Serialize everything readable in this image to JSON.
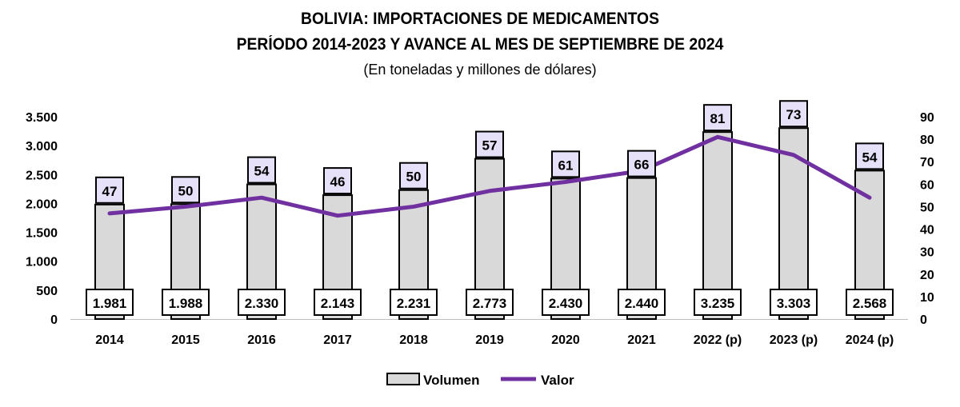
{
  "chart_data": {
    "type": "bar",
    "title": "BOLIVIA: IMPORTACIONES DE MEDICAMENTOS",
    "subtitle": "PERÍODO 2014-2023 Y AVANCE AL MES DE SEPTIEMBRE DE 2024",
    "units_note": "(En toneladas y millones de dólares)",
    "categories": [
      "2014",
      "2015",
      "2016",
      "2017",
      "2018",
      "2019",
      "2020",
      "2021",
      "2022 (p)",
      "2023 (p)",
      "2024 (p)"
    ],
    "series": [
      {
        "name": "Volumen",
        "type": "bar",
        "axis": "left",
        "values": [
          1981,
          1988,
          2330,
          2143,
          2231,
          2773,
          2430,
          2440,
          3235,
          3303,
          2568
        ],
        "labels": [
          "1.981",
          "1.988",
          "2.330",
          "2.143",
          "2.231",
          "2.773",
          "2.430",
          "2.440",
          "3.235",
          "3.303",
          "2.568"
        ],
        "color": "#d9d9d9"
      },
      {
        "name": "Valor",
        "type": "line",
        "axis": "right",
        "values": [
          47,
          50,
          54,
          46,
          50,
          57,
          61,
          66,
          81,
          73,
          54
        ],
        "color": "#7030a0"
      }
    ],
    "y_left": {
      "range": [
        0,
        3500
      ],
      "ticks": [
        0,
        500,
        1000,
        1500,
        2000,
        2500,
        3000,
        3500
      ],
      "tick_labels": [
        "0",
        "500",
        "1.000",
        "1.500",
        "2.000",
        "2.500",
        "3.000",
        "3.500"
      ]
    },
    "y_right": {
      "range": [
        0,
        90
      ],
      "ticks": [
        0,
        10,
        20,
        30,
        40,
        50,
        60,
        70,
        80,
        90
      ],
      "tick_labels": [
        "0",
        "10",
        "20",
        "30",
        "40",
        "50",
        "60",
        "70",
        "80",
        "90"
      ]
    },
    "grid": false,
    "legend": "bottom-center",
    "label_fill": "#e6e0f8"
  }
}
